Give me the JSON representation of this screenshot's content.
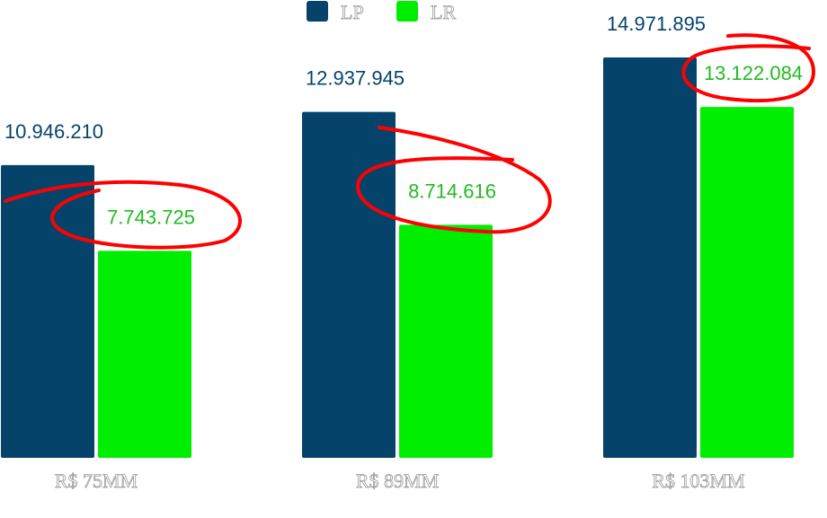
{
  "chart_data": {
    "type": "bar",
    "categories": [
      "R$ 75MM",
      "R$ 89MM",
      "R$ 103MM"
    ],
    "series": [
      {
        "name": "LP",
        "color": "#05436b",
        "values": [
          10946210,
          12937945,
          14971895
        ],
        "labels": [
          "10.946.210",
          "12.937.945",
          "14.971.895"
        ]
      },
      {
        "name": "LR",
        "color": "#00ee00",
        "values": [
          7743725,
          8714616,
          13122084
        ],
        "labels": [
          "7.743.725",
          "8.714.616",
          "13.122.084"
        ]
      }
    ],
    "ylim": [
      0,
      15000000
    ],
    "grid": false,
    "legend": "top-center",
    "annotations": {
      "highlight": "red hand-drawn circles around LR value labels",
      "color": "#ff0000"
    },
    "label_colors": {
      "LP": "#05436b",
      "LR": "#22bb22"
    }
  }
}
